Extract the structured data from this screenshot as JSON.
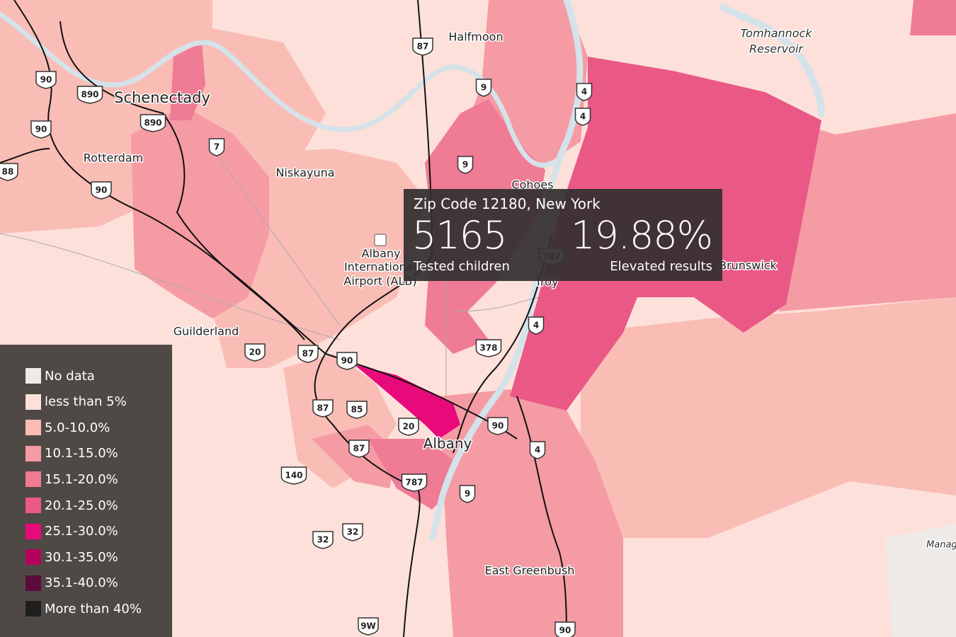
{
  "map": {
    "places": [
      {
        "label": "Halfmoon"
      },
      {
        "label": "Schenectady"
      },
      {
        "label": "Rotterdam"
      },
      {
        "label": "Niskayuna"
      },
      {
        "label": "Cohoes"
      },
      {
        "label": "Albany"
      },
      {
        "label": "International"
      },
      {
        "label": "Airport (ALB)"
      },
      {
        "label": "Troy"
      },
      {
        "label": "Brunswick"
      },
      {
        "label": "Guilderland"
      },
      {
        "label": "Albany"
      },
      {
        "label": "East Greenbush"
      },
      {
        "label": "Tomhannock"
      },
      {
        "label": "Reservoir"
      },
      {
        "label": "Manag"
      }
    ],
    "shields": [
      "87",
      "9",
      "4",
      "4",
      "9",
      "7",
      "90",
      "890",
      "890",
      "90",
      "90",
      "88",
      "787",
      "4",
      "378",
      "20",
      "87",
      "90",
      "87",
      "85",
      "20",
      "90",
      "4",
      "87",
      "140",
      "787",
      "9",
      "32",
      "32",
      "9W",
      "90"
    ]
  },
  "tooltip": {
    "title": "Zip Code 12180, New York",
    "tested": 5165,
    "tested_label": "Tested children",
    "elevated": "19.88%",
    "elevated_label": "Elevated results"
  },
  "legend": {
    "items": [
      {
        "label": "No data",
        "color": "#eeeae8"
      },
      {
        "label": "less than 5%",
        "color": "#fde0da"
      },
      {
        "label": "5.0-10.0%",
        "color": "#f9bdb6"
      },
      {
        "label": "10.1-15.0%",
        "color": "#f59ba4"
      },
      {
        "label": "15.1-20.0%",
        "color": "#ef7b95"
      },
      {
        "label": "20.1-25.0%",
        "color": "#ea5886"
      },
      {
        "label": "25.1-30.0%",
        "color": "#e80a7a"
      },
      {
        "label": "30.1-35.0%",
        "color": "#b5005d"
      },
      {
        "label": "35.1-40.0%",
        "color": "#5a0b3b"
      },
      {
        "label": "More than 40%",
        "color": "#1e1e1e"
      }
    ]
  }
}
